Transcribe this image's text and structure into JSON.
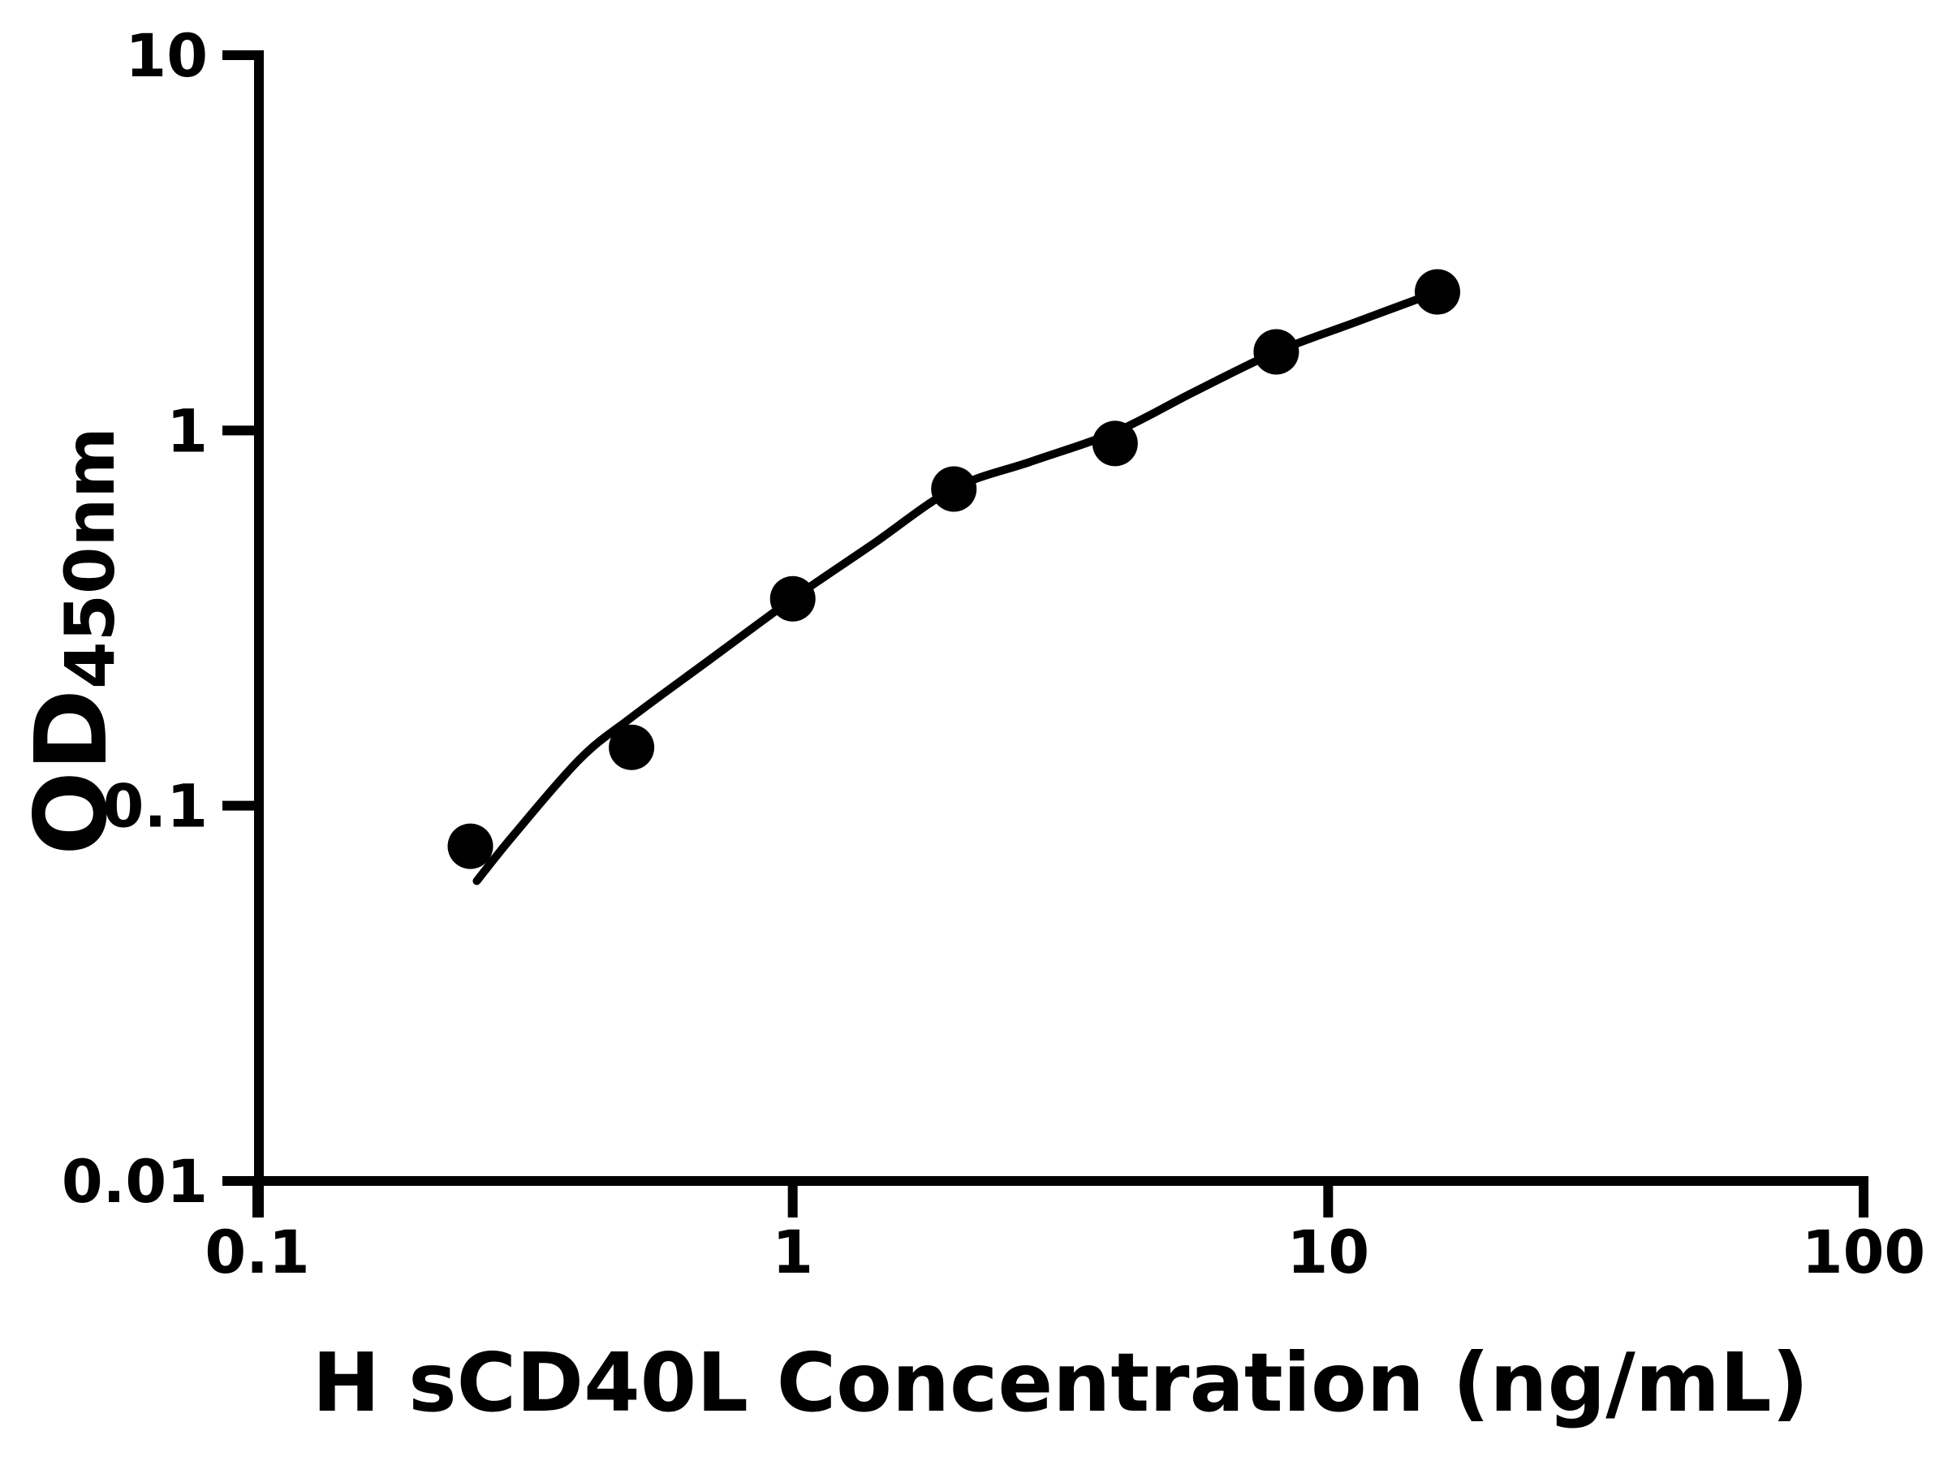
{
  "figure": {
    "background_color": "#ffffff",
    "axis_color": "#000000",
    "point_color": "#000000",
    "curve_color": "#000000"
  },
  "chart_data": {
    "type": "scatter",
    "title": "",
    "xlabel": "H sCD40L Concentration (ng/mL)",
    "ylabel_main": "OD",
    "ylabel_sub": "450nm",
    "x_scale": "log",
    "y_scale": "log",
    "xlim": [
      0.1,
      100
    ],
    "ylim": [
      0.01,
      10
    ],
    "x_ticks": [
      0.1,
      1,
      10,
      100
    ],
    "x_tick_labels": [
      "0.1",
      "1",
      "10",
      "100"
    ],
    "y_ticks": [
      0.01,
      0.1,
      1,
      10
    ],
    "y_tick_labels": [
      "0.01",
      "0.1",
      "1",
      "10"
    ],
    "grid": false,
    "legend_position": "none",
    "series": [
      {
        "name": "standard-points",
        "type": "scatter",
        "marker": "circle",
        "color": "#000000",
        "points": [
          {
            "x": 0.25,
            "y": 0.078
          },
          {
            "x": 0.5,
            "y": 0.143
          },
          {
            "x": 1,
            "y": 0.356
          },
          {
            "x": 2,
            "y": 0.698
          },
          {
            "x": 4,
            "y": 0.923
          },
          {
            "x": 8,
            "y": 1.62
          },
          {
            "x": 16,
            "y": 2.34
          }
        ]
      },
      {
        "name": "fitted-curve",
        "type": "line",
        "color": "#000000",
        "points": [
          {
            "x": 0.257,
            "y": 0.063
          },
          {
            "x": 0.3,
            "y": 0.083
          },
          {
            "x": 0.4,
            "y": 0.133
          },
          {
            "x": 0.5,
            "y": 0.172
          },
          {
            "x": 0.7,
            "y": 0.245
          },
          {
            "x": 1.0,
            "y": 0.356
          },
          {
            "x": 1.4,
            "y": 0.494
          },
          {
            "x": 2.0,
            "y": 0.7
          },
          {
            "x": 2.8,
            "y": 0.828
          },
          {
            "x": 4.0,
            "y": 0.99
          },
          {
            "x": 5.6,
            "y": 1.264
          },
          {
            "x": 8.0,
            "y": 1.62
          },
          {
            "x": 11.3,
            "y": 1.947
          },
          {
            "x": 16,
            "y": 2.34
          }
        ]
      }
    ]
  }
}
